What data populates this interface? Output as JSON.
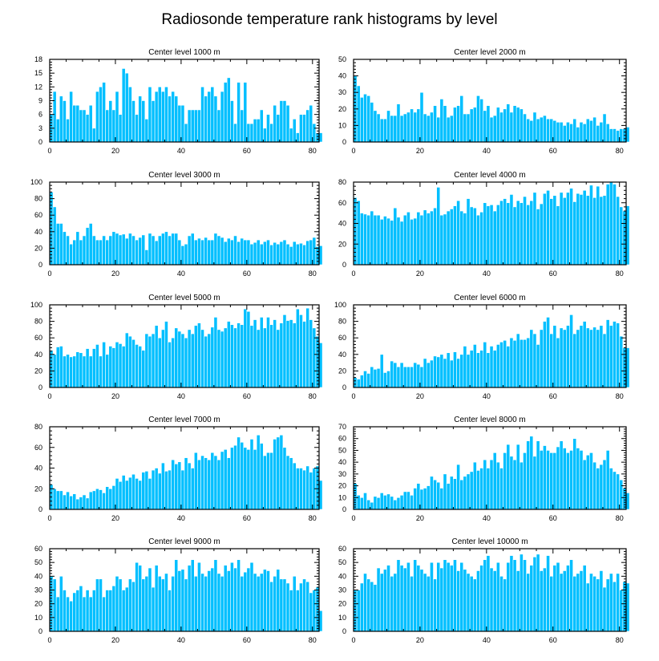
{
  "figure": {
    "title": "Radiosonde temperature rank histograms by level",
    "bar_color": "#00bfff",
    "bar_edge_color": "#ffffff",
    "axis_color": "#000000"
  },
  "chart_data": [
    {
      "type": "bar",
      "title": "Center level 1000 m",
      "xlim": [
        0,
        82
      ],
      "ylim": [
        0,
        18
      ],
      "xticks": [
        0,
        20,
        40,
        60,
        80
      ],
      "yticks": [
        0,
        3,
        6,
        9,
        12,
        15,
        18
      ],
      "values": [
        6,
        11,
        5,
        10,
        9,
        5,
        11,
        8,
        8,
        7,
        7,
        6,
        8,
        3,
        11,
        12,
        13,
        7,
        9,
        7,
        11,
        6,
        16,
        15,
        12,
        9,
        6,
        10,
        9,
        5,
        12,
        9,
        11,
        12,
        11,
        12,
        10,
        11,
        10,
        8,
        8,
        4,
        7,
        7,
        7,
        7,
        12,
        10,
        11,
        12,
        10,
        7,
        11,
        13,
        14,
        9,
        4,
        13,
        7,
        13,
        4,
        4,
        5,
        5,
        7,
        3,
        6,
        4,
        8,
        6,
        9,
        9,
        8,
        3,
        5,
        2,
        6,
        6,
        7,
        8,
        4,
        2,
        2
      ]
    },
    {
      "type": "bar",
      "title": "Center level 2000 m",
      "xlim": [
        0,
        82
      ],
      "ylim": [
        0,
        50
      ],
      "xticks": [
        0,
        20,
        40,
        60,
        80
      ],
      "yticks": [
        0,
        10,
        20,
        30,
        40,
        50
      ],
      "values": [
        40,
        34,
        27,
        29,
        28,
        24,
        19,
        17,
        14,
        14,
        19,
        16,
        16,
        23,
        16,
        17,
        18,
        20,
        18,
        20,
        30,
        17,
        16,
        18,
        22,
        15,
        26,
        22,
        15,
        16,
        21,
        22,
        28,
        17,
        17,
        20,
        21,
        28,
        26,
        19,
        22,
        15,
        16,
        21,
        18,
        20,
        23,
        18,
        22,
        21,
        20,
        17,
        14,
        13,
        18,
        14,
        15,
        16,
        14,
        14,
        13,
        12,
        12,
        10,
        12,
        11,
        14,
        9,
        12,
        11,
        14,
        13,
        15,
        10,
        12,
        17,
        11,
        8,
        8,
        7,
        8,
        8,
        9
      ]
    },
    {
      "type": "bar",
      "title": "Center level 3000 m",
      "xlim": [
        0,
        82
      ],
      "ylim": [
        0,
        100
      ],
      "xticks": [
        0,
        20,
        40,
        60,
        80
      ],
      "yticks": [
        0,
        20,
        40,
        60,
        80,
        100
      ],
      "values": [
        88,
        70,
        50,
        50,
        40,
        35,
        25,
        30,
        40,
        30,
        35,
        45,
        50,
        35,
        30,
        30,
        35,
        30,
        35,
        40,
        38,
        36,
        37,
        32,
        38,
        35,
        30,
        33,
        36,
        18,
        38,
        35,
        29,
        35,
        38,
        40,
        35,
        38,
        38,
        30,
        23,
        25,
        35,
        38,
        30,
        32,
        30,
        33,
        30,
        30,
        38,
        35,
        33,
        28,
        32,
        30,
        35,
        28,
        32,
        30,
        30,
        25,
        27,
        30,
        25,
        28,
        30,
        24,
        27,
        25,
        28,
        30,
        25,
        22,
        28,
        25,
        26,
        24,
        29,
        30,
        33,
        22,
        23
      ]
    },
    {
      "type": "bar",
      "title": "Center level 4000 m",
      "xlim": [
        0,
        82
      ],
      "ylim": [
        0,
        80
      ],
      "xticks": [
        0,
        20,
        40,
        60,
        80
      ],
      "yticks": [
        0,
        20,
        40,
        60,
        80
      ],
      "values": [
        65,
        62,
        50,
        49,
        48,
        52,
        48,
        48,
        44,
        47,
        45,
        43,
        55,
        46,
        42,
        48,
        51,
        44,
        45,
        51,
        48,
        53,
        50,
        52,
        55,
        75,
        48,
        49,
        52,
        54,
        57,
        62,
        52,
        50,
        64,
        56,
        55,
        48,
        51,
        60,
        57,
        58,
        52,
        58,
        62,
        64,
        60,
        68,
        56,
        62,
        60,
        66,
        58,
        62,
        70,
        54,
        59,
        69,
        72,
        64,
        67,
        57,
        70,
        65,
        70,
        74,
        61,
        69,
        68,
        72,
        67,
        77,
        65,
        76,
        66,
        67,
        78,
        80,
        78,
        66,
        56,
        52,
        57
      ]
    },
    {
      "type": "bar",
      "title": "Center level 5000 m",
      "xlim": [
        0,
        82
      ],
      "ylim": [
        0,
        100
      ],
      "xticks": [
        0,
        20,
        40,
        60,
        80
      ],
      "yticks": [
        0,
        20,
        40,
        60,
        80,
        100
      ],
      "values": [
        45,
        40,
        49,
        50,
        38,
        40,
        37,
        38,
        43,
        42,
        38,
        47,
        38,
        47,
        52,
        38,
        55,
        40,
        50,
        48,
        55,
        53,
        50,
        66,
        62,
        58,
        52,
        50,
        45,
        65,
        62,
        65,
        75,
        60,
        70,
        80,
        55,
        60,
        72,
        68,
        65,
        60,
        70,
        65,
        75,
        78,
        70,
        62,
        65,
        73,
        85,
        70,
        68,
        72,
        80,
        76,
        72,
        78,
        76,
        95,
        92,
        75,
        82,
        70,
        85,
        72,
        85,
        76,
        82,
        70,
        78,
        88,
        81,
        82,
        78,
        95,
        88,
        80,
        96,
        82,
        72,
        62,
        54
      ]
    },
    {
      "type": "bar",
      "title": "Center level 6000 m",
      "xlim": [
        0,
        82
      ],
      "ylim": [
        0,
        100
      ],
      "xticks": [
        0,
        20,
        40,
        60,
        80
      ],
      "yticks": [
        0,
        20,
        40,
        60,
        80,
        100
      ],
      "values": [
        12,
        10,
        15,
        20,
        17,
        25,
        22,
        23,
        40,
        18,
        20,
        32,
        30,
        25,
        30,
        25,
        25,
        25,
        30,
        28,
        25,
        35,
        30,
        33,
        38,
        37,
        40,
        35,
        42,
        33,
        43,
        35,
        40,
        50,
        40,
        45,
        52,
        42,
        45,
        55,
        42,
        50,
        45,
        52,
        55,
        57,
        50,
        60,
        57,
        65,
        58,
        58,
        60,
        70,
        65,
        52,
        70,
        80,
        85,
        65,
        75,
        60,
        72,
        70,
        75,
        88,
        65,
        70,
        75,
        80,
        72,
        70,
        73,
        70,
        75,
        65,
        82,
        75,
        80,
        78,
        62,
        48,
        48
      ]
    },
    {
      "type": "bar",
      "title": "Center level 7000 m",
      "xlim": [
        0,
        82
      ],
      "ylim": [
        0,
        80
      ],
      "xticks": [
        0,
        20,
        40,
        60,
        80
      ],
      "yticks": [
        0,
        20,
        40,
        60,
        80
      ],
      "values": [
        24,
        20,
        18,
        18,
        14,
        17,
        13,
        15,
        10,
        12,
        14,
        11,
        17,
        18,
        20,
        19,
        16,
        22,
        20,
        23,
        30,
        27,
        33,
        28,
        31,
        34,
        30,
        28,
        36,
        37,
        30,
        38,
        40,
        35,
        45,
        37,
        38,
        48,
        44,
        46,
        38,
        50,
        45,
        40,
        55,
        48,
        52,
        50,
        48,
        55,
        52,
        48,
        56,
        58,
        50,
        60,
        62,
        70,
        65,
        60,
        58,
        68,
        58,
        72,
        64,
        52,
        55,
        55,
        68,
        70,
        72,
        60,
        52,
        50,
        45,
        40,
        40,
        38,
        42,
        36,
        40,
        42,
        28
      ]
    },
    {
      "type": "bar",
      "title": "Center level 8000 m",
      "xlim": [
        0,
        82
      ],
      "ylim": [
        0,
        70
      ],
      "xticks": [
        0,
        20,
        40,
        60,
        80
      ],
      "yticks": [
        0,
        10,
        20,
        30,
        40,
        50,
        60,
        70
      ],
      "values": [
        22,
        12,
        10,
        14,
        8,
        6,
        11,
        10,
        14,
        12,
        13,
        11,
        8,
        10,
        12,
        15,
        15,
        12,
        18,
        22,
        17,
        18,
        20,
        28,
        25,
        23,
        18,
        30,
        22,
        28,
        26,
        38,
        25,
        28,
        30,
        32,
        40,
        33,
        35,
        42,
        35,
        42,
        48,
        40,
        35,
        48,
        55,
        45,
        42,
        55,
        40,
        48,
        58,
        62,
        45,
        58,
        50,
        54,
        50,
        48,
        48,
        53,
        58,
        52,
        48,
        50,
        60,
        52,
        50,
        42,
        46,
        48,
        40,
        35,
        38,
        42,
        50,
        35,
        32,
        30,
        25,
        18,
        14
      ]
    },
    {
      "type": "bar",
      "title": "Center level 9000 m",
      "xlim": [
        0,
        82
      ],
      "ylim": [
        0,
        60
      ],
      "xticks": [
        0,
        20,
        40,
        60,
        80
      ],
      "yticks": [
        0,
        10,
        20,
        30,
        40,
        50,
        60
      ],
      "values": [
        40,
        38,
        25,
        40,
        30,
        25,
        22,
        28,
        30,
        33,
        25,
        30,
        25,
        30,
        38,
        38,
        25,
        30,
        30,
        33,
        40,
        38,
        30,
        32,
        38,
        36,
        50,
        48,
        38,
        40,
        46,
        32,
        48,
        40,
        38,
        42,
        30,
        40,
        52,
        44,
        45,
        38,
        48,
        52,
        40,
        50,
        42,
        40,
        44,
        46,
        52,
        42,
        40,
        48,
        44,
        50,
        46,
        52,
        40,
        43,
        46,
        50,
        42,
        40,
        42,
        45,
        44,
        36,
        40,
        45,
        38,
        38,
        35,
        30,
        40,
        30,
        35,
        38,
        36,
        28,
        30,
        32,
        15
      ]
    },
    {
      "type": "bar",
      "title": "Center level 10000 m",
      "xlim": [
        0,
        82
      ],
      "ylim": [
        0,
        60
      ],
      "xticks": [
        0,
        20,
        40,
        60,
        80
      ],
      "yticks": [
        0,
        10,
        20,
        30,
        40,
        50,
        60
      ],
      "values": [
        30,
        30,
        35,
        42,
        38,
        36,
        34,
        46,
        42,
        45,
        48,
        40,
        42,
        52,
        48,
        46,
        50,
        40,
        52,
        48,
        45,
        42,
        40,
        50,
        38,
        50,
        46,
        52,
        50,
        48,
        52,
        44,
        50,
        45,
        42,
        40,
        38,
        44,
        48,
        52,
        55,
        46,
        44,
        50,
        40,
        38,
        50,
        55,
        52,
        44,
        56,
        52,
        42,
        48,
        54,
        56,
        44,
        46,
        55,
        40,
        48,
        50,
        42,
        44,
        48,
        52,
        40,
        42,
        44,
        48,
        35,
        42,
        40,
        38,
        44,
        32,
        38,
        42,
        36,
        42,
        30,
        36,
        35
      ]
    }
  ]
}
